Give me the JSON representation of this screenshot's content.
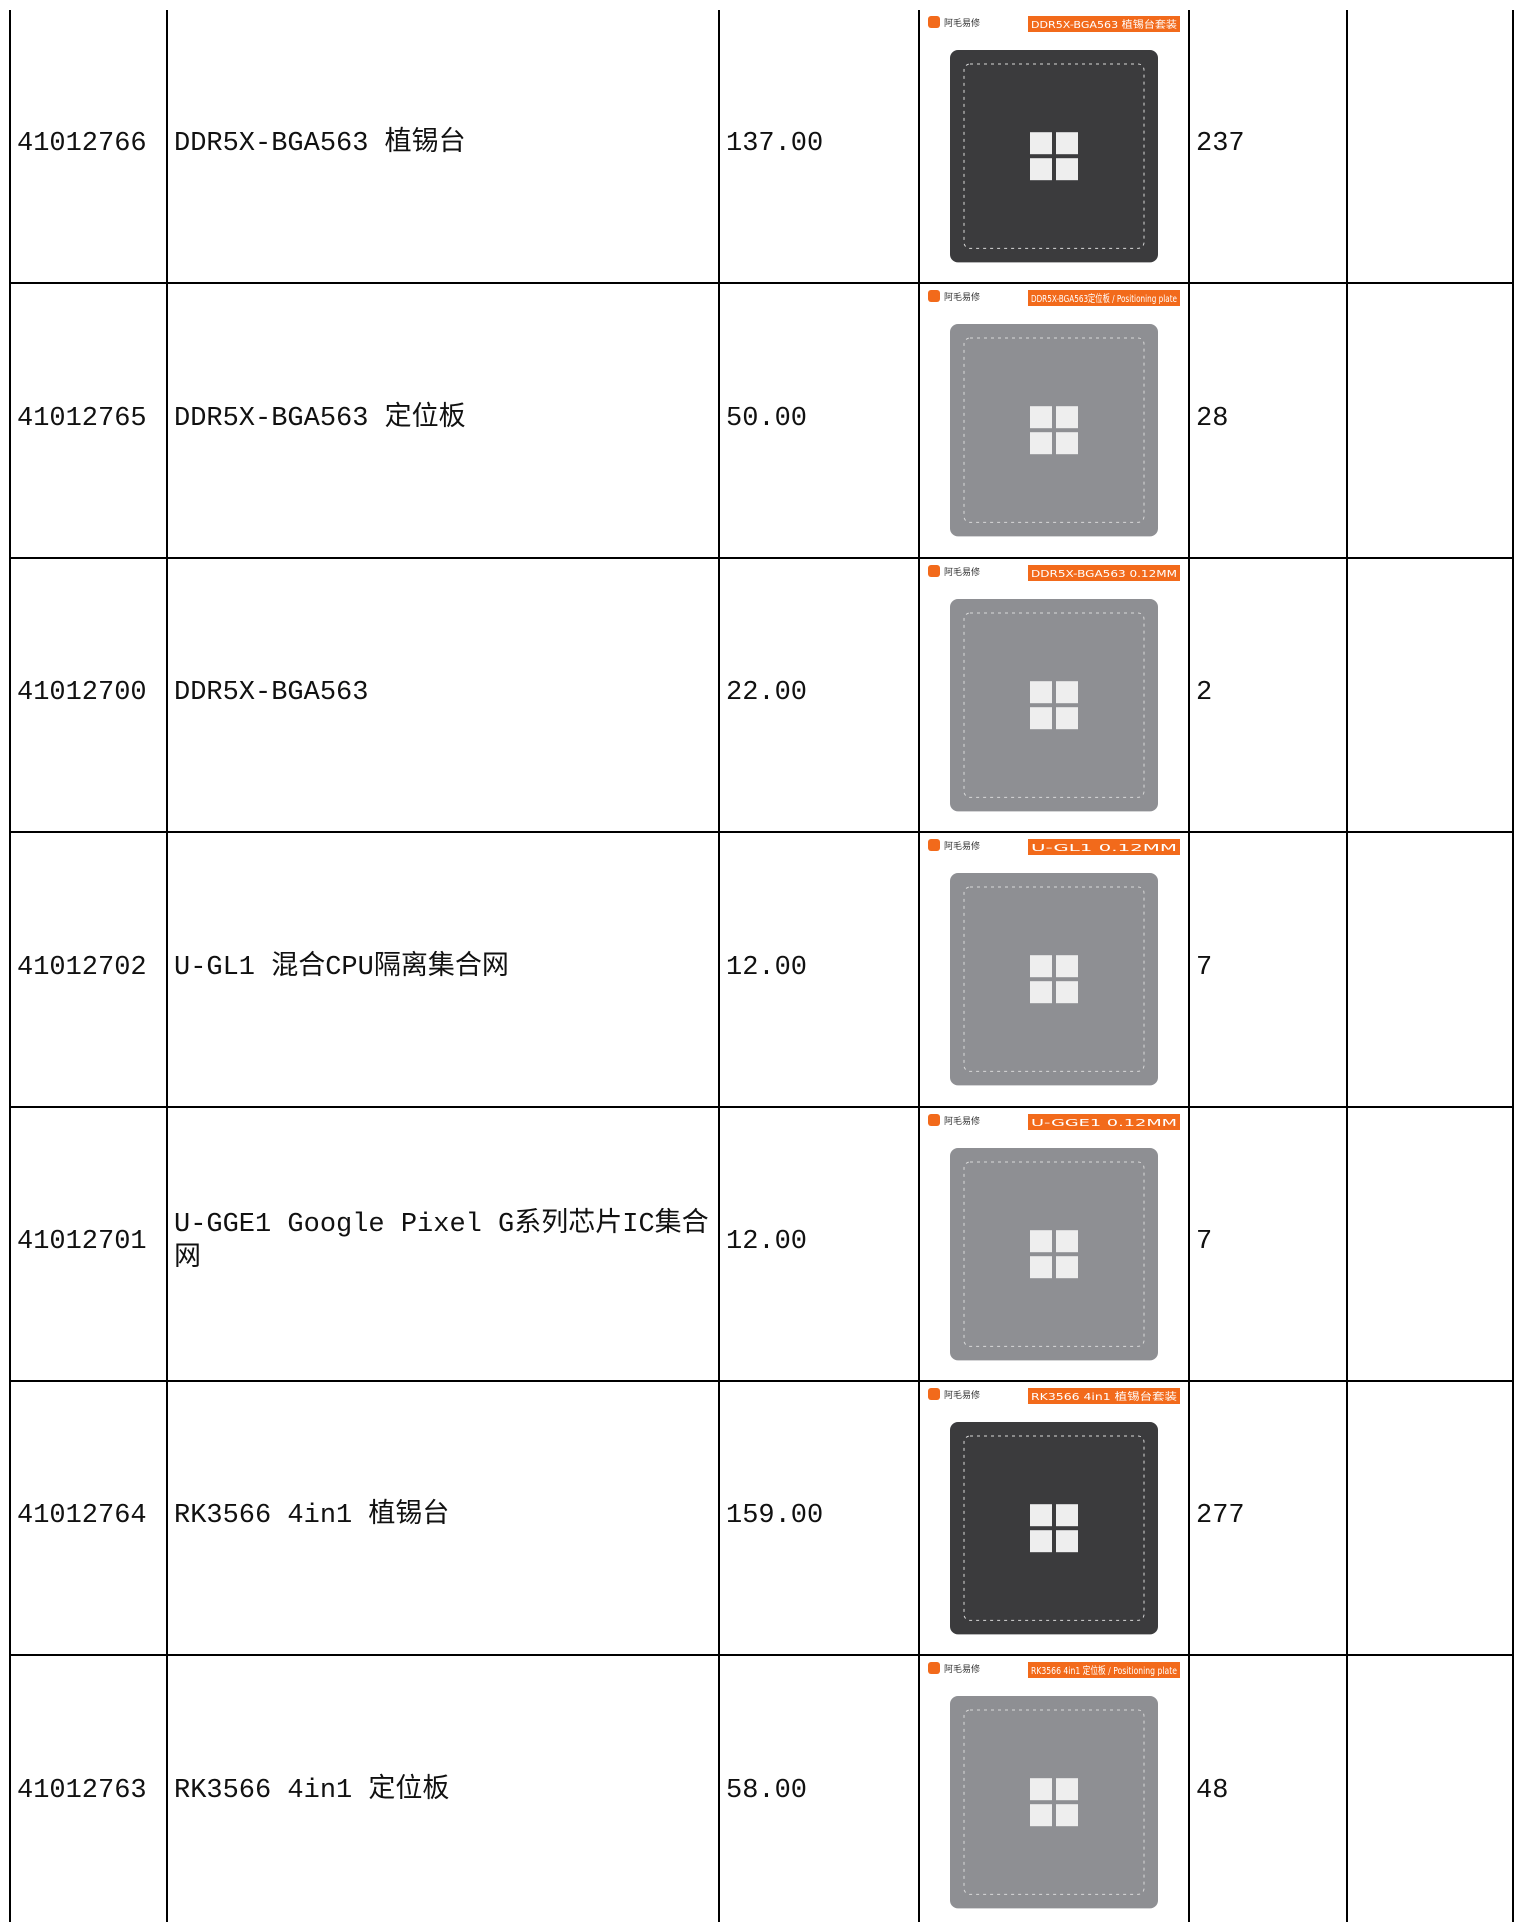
{
  "brand": "阿毛易修",
  "table": {
    "rows": [
      {
        "id": "41012766",
        "name": "DDR5X-BGA563 植锡台",
        "price": "137.00",
        "qty": "237",
        "image_label": "DDR5X-BGA563 植锡台套装"
      },
      {
        "id": "41012765",
        "name": "DDR5X-BGA563 定位板",
        "price": "50.00",
        "qty": "28",
        "image_label": "DDR5X-BGA563定位板 / Positioning plate"
      },
      {
        "id": "41012700",
        "name": "DDR5X-BGA563",
        "price": "22.00",
        "qty": "2",
        "image_label": "DDR5X-BGA563 0.12MM"
      },
      {
        "id": "41012702",
        "name": "U-GL1 混合CPU隔离集合网",
        "price": "12.00",
        "qty": "7",
        "image_label": "U-GL1 0.12MM"
      },
      {
        "id": "41012701",
        "name": "U-GGE1 Google Pixel G系列芯片IC集合网",
        "price": "12.00",
        "qty": "7",
        "image_label": "U-GGE1 0.12MM"
      },
      {
        "id": "41012764",
        "name": "RK3566 4in1 植锡台",
        "price": "159.00",
        "qty": "277",
        "image_label": "RK3566 4in1 植锡台套装"
      },
      {
        "id": "41012763",
        "name": "RK3566 4in1 定位板",
        "price": "58.00",
        "qty": "48",
        "image_label": "RK3566 4in1 定位板 / Positioning plate"
      }
    ]
  }
}
